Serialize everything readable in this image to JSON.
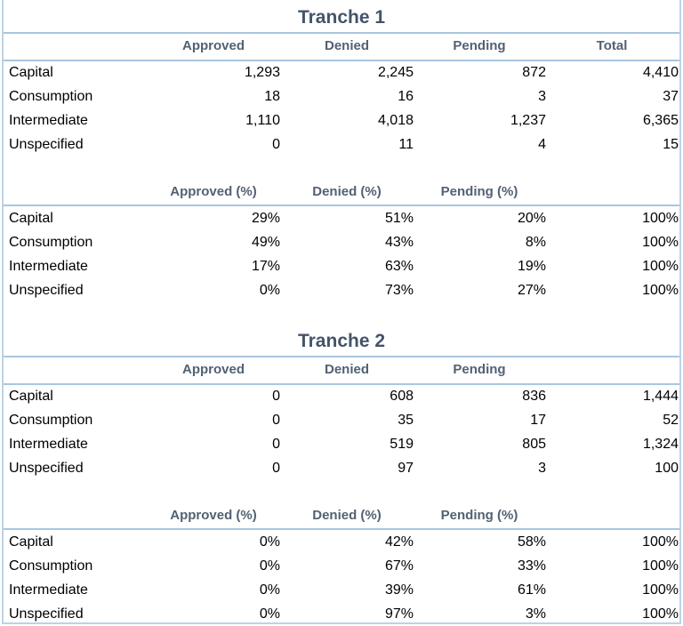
{
  "sections": [
    {
      "title": "Tranche 1",
      "counts": {
        "headers": [
          "Approved",
          "Denied",
          "Pending",
          "Total"
        ],
        "rows": [
          [
            "Capital",
            "1,293",
            "2,245",
            "872",
            "4,410"
          ],
          [
            "Consumption",
            "18",
            "16",
            "3",
            "37"
          ],
          [
            "Intermediate",
            "1,110",
            "4,018",
            "1,237",
            "6,365"
          ],
          [
            "Unspecified",
            "0",
            "11",
            "4",
            "15"
          ]
        ]
      },
      "percents": {
        "headers": [
          "Approved (%)",
          "Denied (%)",
          "Pending (%)"
        ],
        "rows": [
          [
            "Capital",
            "29%",
            "51%",
            "20%",
            "100%"
          ],
          [
            "Consumption",
            "49%",
            "43%",
            "8%",
            "100%"
          ],
          [
            "Intermediate",
            "17%",
            "63%",
            "19%",
            "100%"
          ],
          [
            "Unspecified",
            "0%",
            "73%",
            "27%",
            "100%"
          ]
        ]
      }
    },
    {
      "title": "Tranche 2",
      "counts": {
        "headers": [
          "Approved",
          "Denied",
          "Pending"
        ],
        "rows": [
          [
            "Capital",
            "0",
            "608",
            "836",
            "1,444"
          ],
          [
            "Consumption",
            "0",
            "35",
            "17",
            "52"
          ],
          [
            "Intermediate",
            "0",
            "519",
            "805",
            "1,324"
          ],
          [
            "Unspecified",
            "0",
            "97",
            "3",
            "100"
          ]
        ]
      },
      "percents": {
        "headers": [
          "Approved (%)",
          "Denied (%)",
          "Pending (%)"
        ],
        "rows": [
          [
            "Capital",
            "0%",
            "42%",
            "58%",
            "100%"
          ],
          [
            "Consumption",
            "0%",
            "67%",
            "33%",
            "100%"
          ],
          [
            "Intermediate",
            "0%",
            "39%",
            "61%",
            "100%"
          ],
          [
            "Unspecified",
            "0%",
            "97%",
            "3%",
            "100%"
          ]
        ]
      }
    }
  ]
}
